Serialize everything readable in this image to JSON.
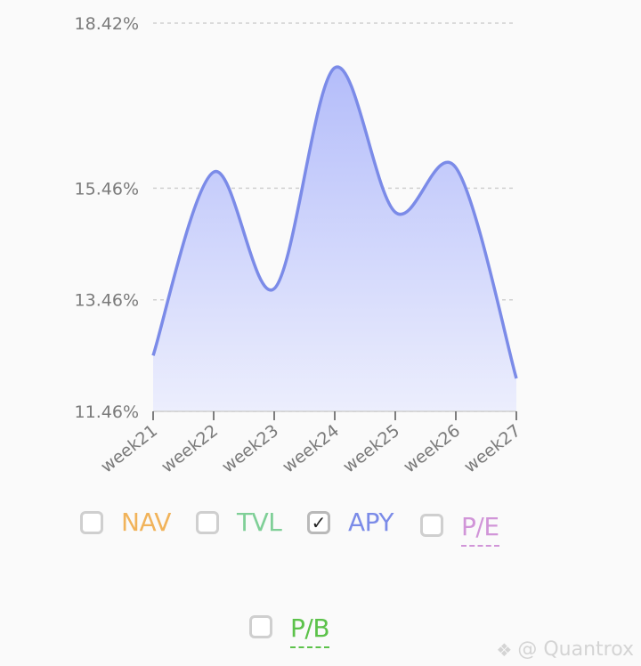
{
  "chart_data": {
    "type": "area",
    "x": [
      "week21",
      "week22",
      "week23",
      "week24",
      "week25",
      "week26",
      "week27"
    ],
    "series": [
      {
        "name": "APY",
        "values": [
          12.46,
          15.75,
          13.66,
          17.62,
          15.03,
          15.83,
          12.05
        ]
      }
    ],
    "yticks": [
      "11.46%",
      "13.46%",
      "15.46%",
      "18.42%"
    ],
    "ytick_values": [
      11.46,
      13.46,
      15.46,
      18.42
    ],
    "ylim": [
      11.46,
      18.42
    ],
    "grid": true,
    "line_color": "#7b8be8",
    "fill_top_color": "#b4bdfa",
    "fill_bottom_color": "#eceefd",
    "legend_position": "bottom"
  },
  "legend": {
    "items": [
      {
        "label": "NAV",
        "color": "#f1b35a",
        "checked": false,
        "dashed": false
      },
      {
        "label": "TVL",
        "color": "#7fcf97",
        "checked": false,
        "dashed": false
      },
      {
        "label": "APY",
        "color": "#7b8be8",
        "checked": true,
        "dashed": false
      },
      {
        "label": "P/E",
        "color": "#d195d8",
        "checked": false,
        "dashed": true
      },
      {
        "label": "P/B",
        "color": "#5cc24a",
        "checked": false,
        "dashed": true
      }
    ]
  },
  "watermark": {
    "text": "@ Quantrox",
    "icon": "stamp-icon"
  }
}
